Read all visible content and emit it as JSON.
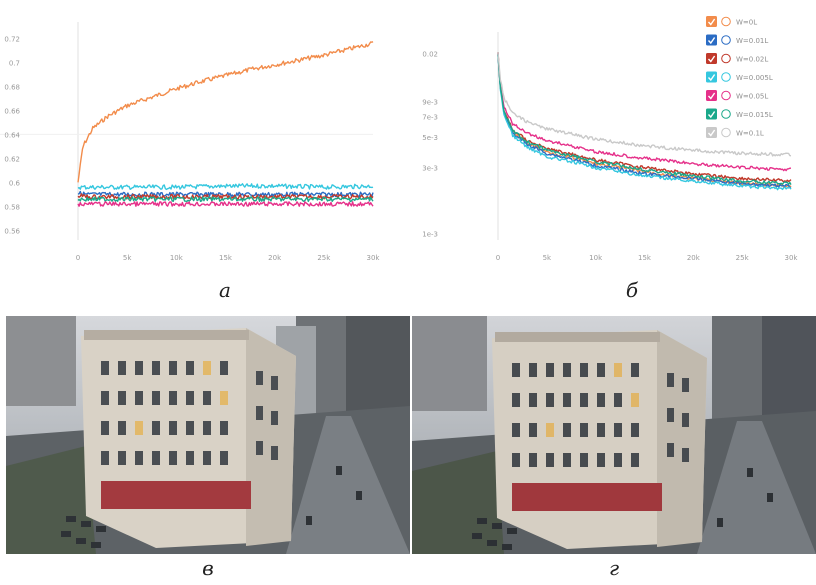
{
  "chart_data": [
    {
      "type": "line",
      "panel_label": "а",
      "x_ticks": [
        "0",
        "5k",
        "10k",
        "15k",
        "20k",
        "25k",
        "30k"
      ],
      "x_tick_values": [
        0,
        5000,
        10000,
        15000,
        20000,
        25000,
        30000
      ],
      "y_ticks": [
        "0.72",
        "0.7",
        "0.68",
        "0.66",
        "0.64",
        "0.62",
        "0.6",
        "0.58",
        "0.56"
      ],
      "y_tick_values": [
        0.72,
        0.7,
        0.68,
        0.66,
        0.64,
        0.62,
        0.6,
        0.58,
        0.56
      ],
      "ylim": [
        0.552,
        0.727
      ],
      "xlim": [
        0,
        30000
      ],
      "grid": false,
      "series": [
        {
          "color": "#f28c4b",
          "x": [
            0,
            500,
            1500,
            3000,
            5000,
            7500,
            10000,
            12500,
            15000,
            17500,
            20000,
            22500,
            25000,
            27500,
            30000
          ],
          "y": [
            0.6,
            0.63,
            0.645,
            0.655,
            0.664,
            0.671,
            0.678,
            0.684,
            0.689,
            0.694,
            0.698,
            0.702,
            0.706,
            0.711,
            0.716
          ]
        },
        {
          "color": "#35c7df",
          "x": [
            0,
            1000,
            5000,
            10000,
            15000,
            20000,
            25000,
            30000
          ],
          "y": [
            0.596,
            0.596,
            0.596,
            0.596,
            0.597,
            0.597,
            0.596,
            0.597
          ]
        },
        {
          "color": "#2b6cc4",
          "x": [
            0,
            1000,
            5000,
            10000,
            15000,
            20000,
            25000,
            30000
          ],
          "y": [
            0.591,
            0.59,
            0.59,
            0.59,
            0.59,
            0.59,
            0.59,
            0.59
          ]
        },
        {
          "color": "#c0392b",
          "x": [
            0,
            1000,
            5000,
            10000,
            15000,
            20000,
            25000,
            30000
          ],
          "y": [
            0.589,
            0.588,
            0.588,
            0.588,
            0.588,
            0.588,
            0.588,
            0.588
          ]
        },
        {
          "color": "#1aa88a",
          "x": [
            0,
            1000,
            5000,
            10000,
            15000,
            20000,
            25000,
            30000
          ],
          "y": [
            0.586,
            0.586,
            0.586,
            0.586,
            0.586,
            0.586,
            0.586,
            0.586
          ]
        },
        {
          "color": "#e5318a",
          "x": [
            0,
            1000,
            5000,
            10000,
            15000,
            20000,
            25000,
            30000
          ],
          "y": [
            0.582,
            0.582,
            0.582,
            0.582,
            0.582,
            0.582,
            0.582,
            0.582
          ]
        }
      ]
    },
    {
      "type": "line",
      "panel_label": "б",
      "log_scale_y": true,
      "x_ticks": [
        "0",
        "5k",
        "10k",
        "15k",
        "20k",
        "25k",
        "30k"
      ],
      "x_tick_values": [
        0,
        5000,
        10000,
        15000,
        20000,
        25000,
        30000
      ],
      "y_ticks": [
        "0.02",
        "9e-3",
        "7e-3",
        "5e-3",
        "3e-3",
        "1e-3"
      ],
      "y_tick_values": [
        0.02,
        0.009,
        0.007,
        0.005,
        0.003,
        0.001
      ],
      "ylim": [
        0.0009,
        0.025
      ],
      "xlim": [
        0,
        30000
      ],
      "grid": false,
      "legend_position": "top-right",
      "series": [
        {
          "name": "W=0L",
          "color": "#f28c4b",
          "x": [
            0,
            200,
            600,
            1500,
            3000,
            5000,
            10000,
            15000,
            20000,
            25000,
            30000
          ],
          "y": [
            0.02,
            0.012,
            0.0075,
            0.0054,
            0.0045,
            0.0039,
            0.0032,
            0.0028,
            0.0025,
            0.0023,
            0.0022
          ]
        },
        {
          "name": "W=0.01L",
          "color": "#2b6cc4",
          "x": [
            0,
            200,
            600,
            1500,
            3000,
            5000,
            10000,
            15000,
            20000,
            25000,
            30000
          ],
          "y": [
            0.02,
            0.012,
            0.0074,
            0.0053,
            0.0044,
            0.0038,
            0.0031,
            0.0027,
            0.0025,
            0.0023,
            0.0022
          ]
        },
        {
          "name": "W=0.02L",
          "color": "#c0392b",
          "x": [
            0,
            200,
            600,
            1500,
            3000,
            5000,
            10000,
            15000,
            20000,
            25000,
            30000
          ],
          "y": [
            0.02,
            0.012,
            0.0076,
            0.0056,
            0.0047,
            0.0041,
            0.0034,
            0.003,
            0.0027,
            0.0025,
            0.0024
          ]
        },
        {
          "name": "W=0.005L",
          "color": "#35c7df",
          "x": [
            0,
            200,
            600,
            1500,
            3000,
            5000,
            10000,
            15000,
            20000,
            25000,
            30000
          ],
          "y": [
            0.02,
            0.0115,
            0.0072,
            0.0051,
            0.0042,
            0.0036,
            0.003,
            0.0026,
            0.0024,
            0.0022,
            0.0021
          ]
        },
        {
          "name": "W=0.05L",
          "color": "#e5318a",
          "x": [
            0,
            200,
            600,
            1500,
            3000,
            5000,
            10000,
            15000,
            20000,
            25000,
            30000
          ],
          "y": [
            0.02,
            0.0125,
            0.0082,
            0.0062,
            0.0053,
            0.0047,
            0.0039,
            0.0035,
            0.0032,
            0.003,
            0.0029
          ]
        },
        {
          "name": "W=0.015L",
          "color": "#1aa88a",
          "x": [
            0,
            200,
            600,
            1500,
            3000,
            5000,
            10000,
            15000,
            20000,
            25000,
            30000
          ],
          "y": [
            0.02,
            0.012,
            0.0075,
            0.0055,
            0.0046,
            0.004,
            0.0033,
            0.0029,
            0.0026,
            0.0024,
            0.0023
          ]
        },
        {
          "name": "W=0.1L",
          "color": "#c9c9c9",
          "x": [
            0,
            200,
            600,
            1500,
            3000,
            5000,
            10000,
            15000,
            20000,
            25000,
            30000
          ],
          "y": [
            0.02,
            0.0135,
            0.0095,
            0.0074,
            0.0064,
            0.0057,
            0.0048,
            0.0043,
            0.004,
            0.0038,
            0.0037
          ]
        }
      ]
    }
  ],
  "captions": {
    "a": "а",
    "b": "б",
    "c": "в",
    "d": "г"
  },
  "colors": {
    "sky": "#c9ccd1",
    "building": "#d8d2c8",
    "street": "#6f7478",
    "shadow": "#3c4044"
  }
}
